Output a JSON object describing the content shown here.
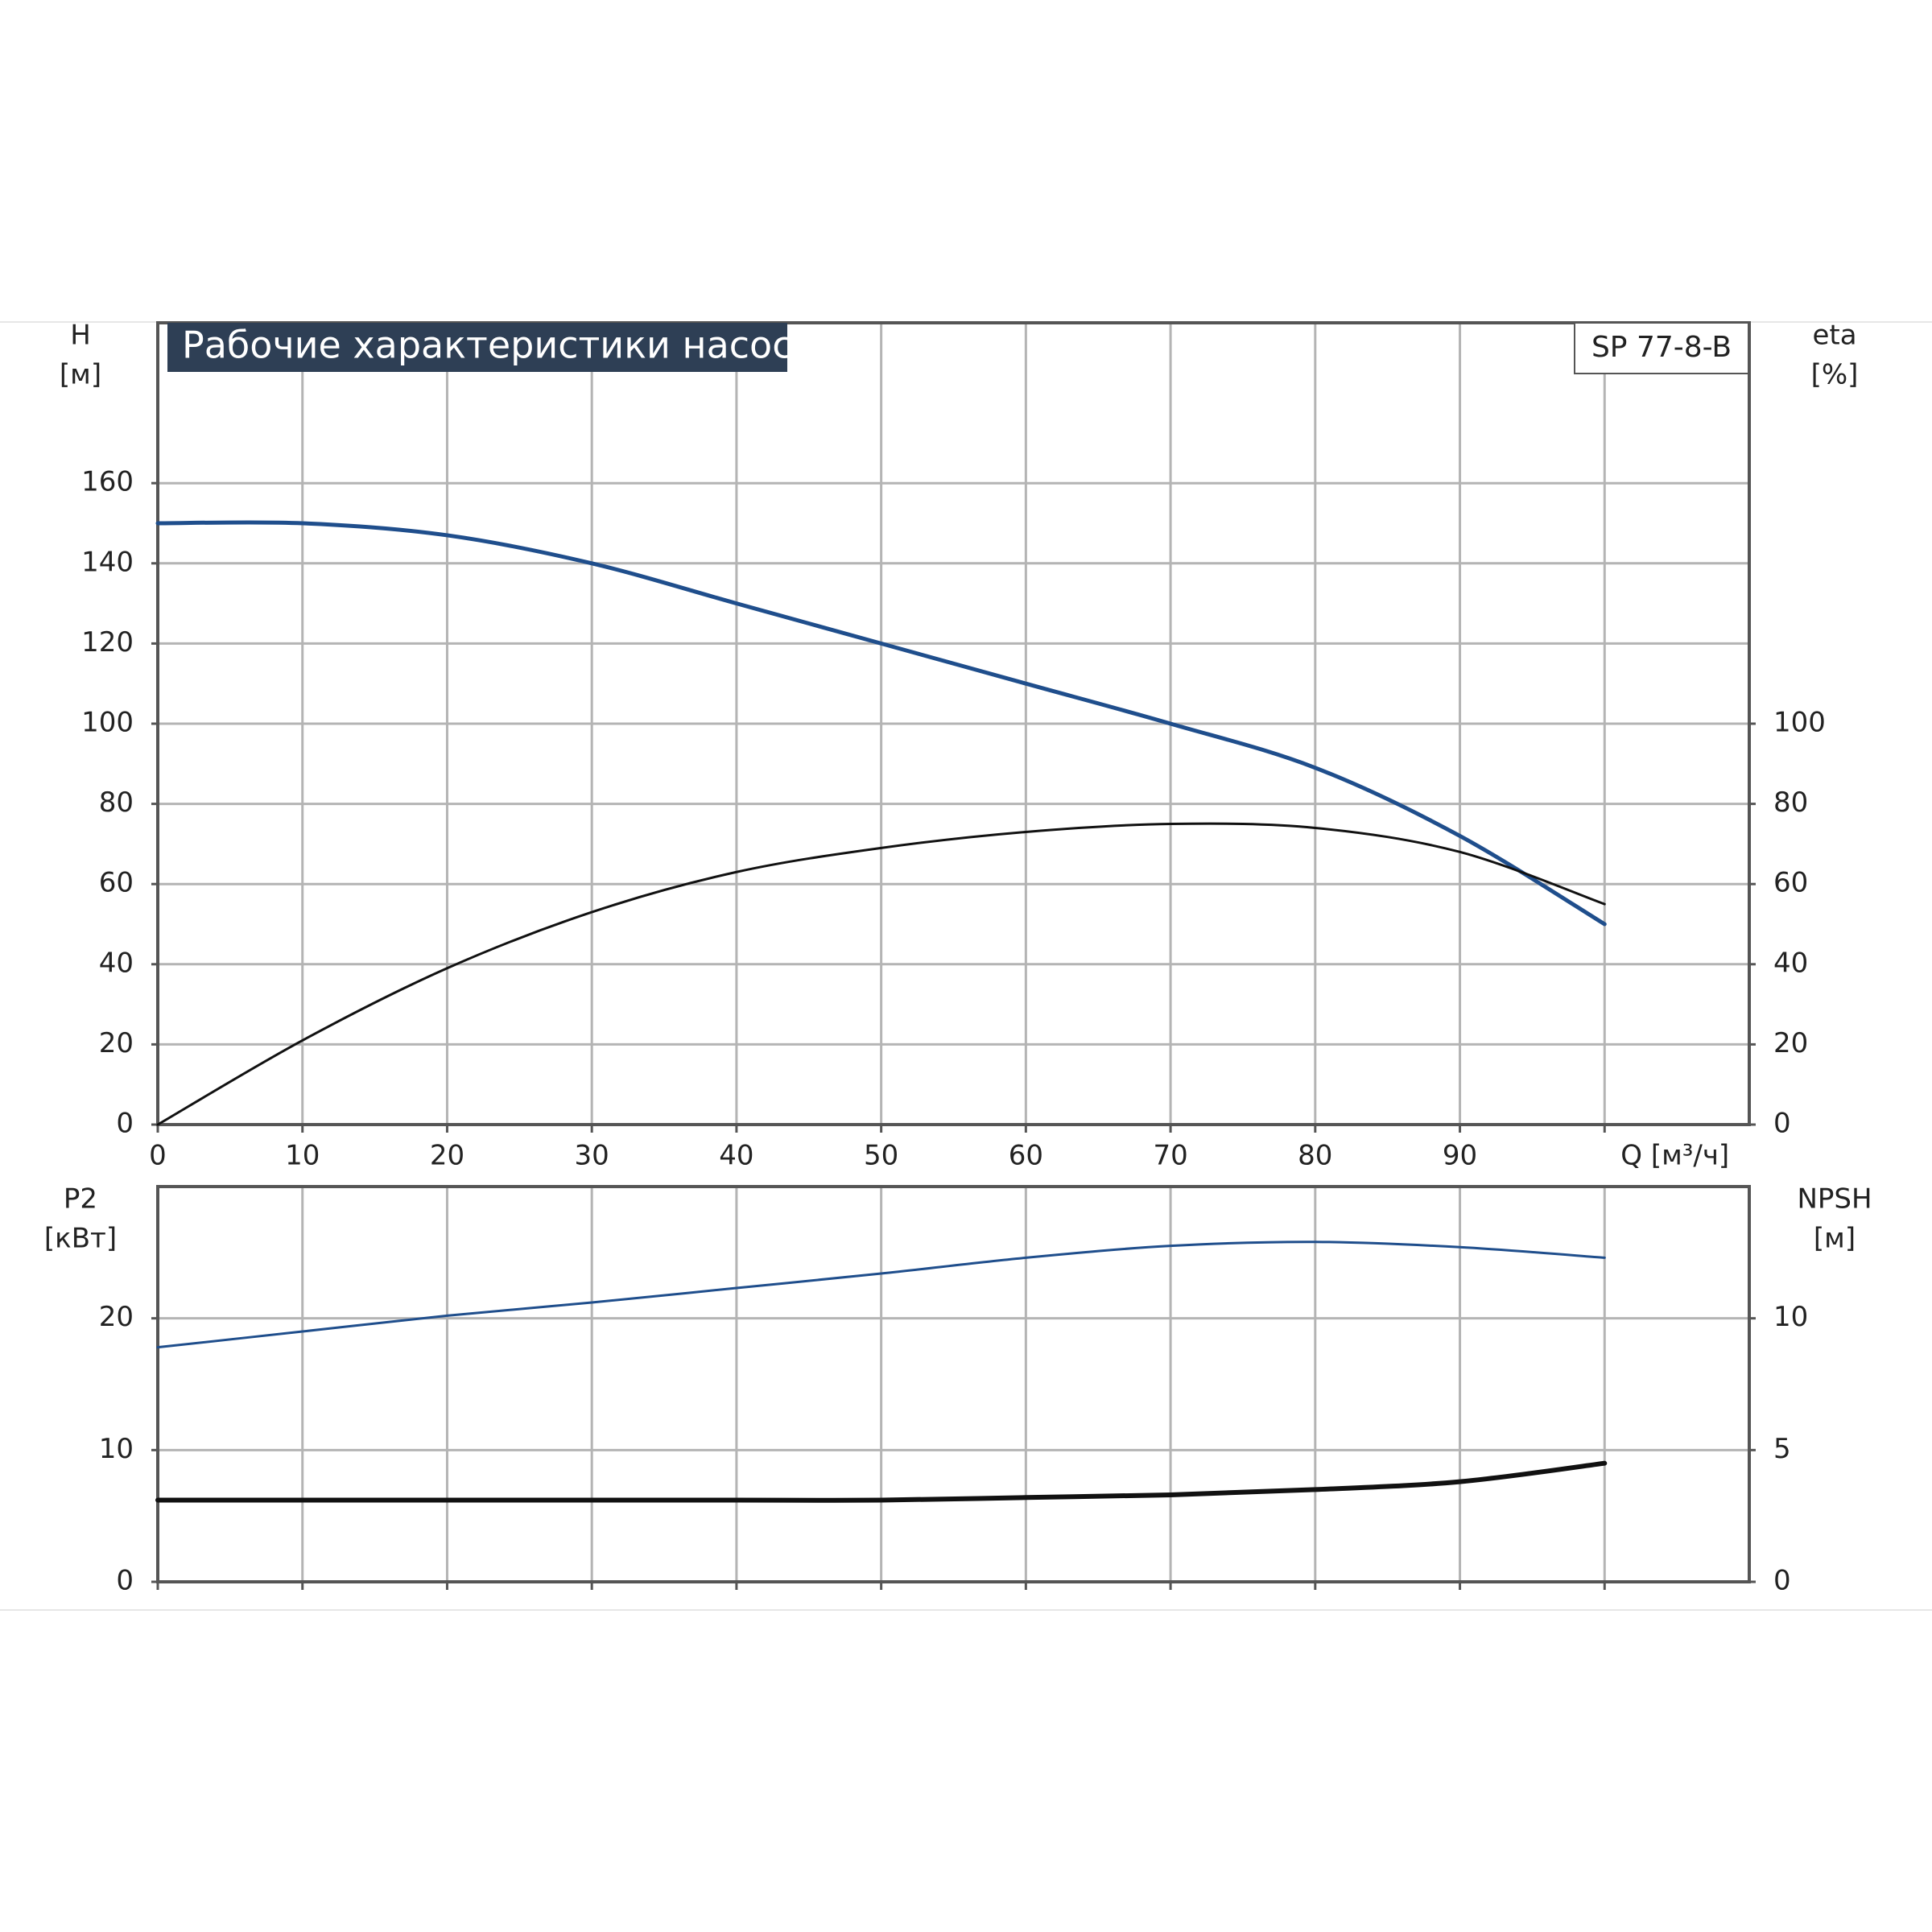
{
  "chart_data": [
    {
      "type": "line",
      "title": "Рабочие характеристики насоса",
      "model": "SP 77-8-B",
      "ylabel": "H",
      "ylabel_unit": "[м]",
      "y2label": "eta",
      "y2label_unit": "[%]",
      "xlim": [
        0,
        110
      ],
      "xticks": [
        0,
        10,
        20,
        30,
        40,
        50,
        60,
        70,
        80,
        90,
        {
          "value": 100,
          "label": "Q [м³/ч]"
        }
      ],
      "ylim": [
        0,
        200
      ],
      "yticks": [
        0,
        20,
        40,
        60,
        80,
        100,
        120,
        140,
        160
      ],
      "y2lim": [
        0,
        200
      ],
      "y2ticks": [
        0,
        20,
        40,
        60,
        80,
        100
      ],
      "grid": true,
      "x": [
        0,
        10,
        20,
        30,
        40,
        50,
        60,
        70,
        80,
        90,
        100
      ],
      "series": [
        {
          "name": "H",
          "color": "#1f4e8c",
          "values": [
            150,
            150,
            147,
            140,
            130,
            120,
            110,
            100,
            89,
            72,
            50
          ]
        },
        {
          "name": "eta",
          "color": "#111111",
          "axis": "y2",
          "values": [
            0,
            21,
            39,
            53,
            63,
            69,
            73,
            75,
            74,
            68,
            55
          ]
        }
      ]
    },
    {
      "type": "line",
      "ylabel": "P2",
      "ylabel_unit": "[кВт]",
      "y2label": "NPSH",
      "y2label_unit": "[м]",
      "xlim": [
        0,
        110
      ],
      "xticks": [
        0,
        10,
        20,
        30,
        40,
        50,
        60,
        70,
        80,
        90,
        100
      ],
      "xtick_labels": false,
      "ylim": [
        0,
        30
      ],
      "yticks": [
        0,
        10,
        20
      ],
      "y2lim": [
        0,
        15
      ],
      "y2ticks": [
        0,
        5,
        10
      ],
      "grid": true,
      "x": [
        0,
        10,
        20,
        30,
        40,
        50,
        60,
        70,
        80,
        90,
        100
      ],
      "series": [
        {
          "name": "P2",
          "color": "#1f4e8c",
          "values": [
            17.8,
            19,
            20.2,
            21.2,
            22.3,
            23.4,
            24.6,
            25.5,
            25.8,
            25.4,
            24.6
          ]
        },
        {
          "name": "NPSH",
          "color": "#111111",
          "axis": "y2",
          "values": [
            3.1,
            3.1,
            3.1,
            3.1,
            3.1,
            3.1,
            3.2,
            3.3,
            3.5,
            3.8,
            4.5
          ]
        }
      ]
    }
  ]
}
